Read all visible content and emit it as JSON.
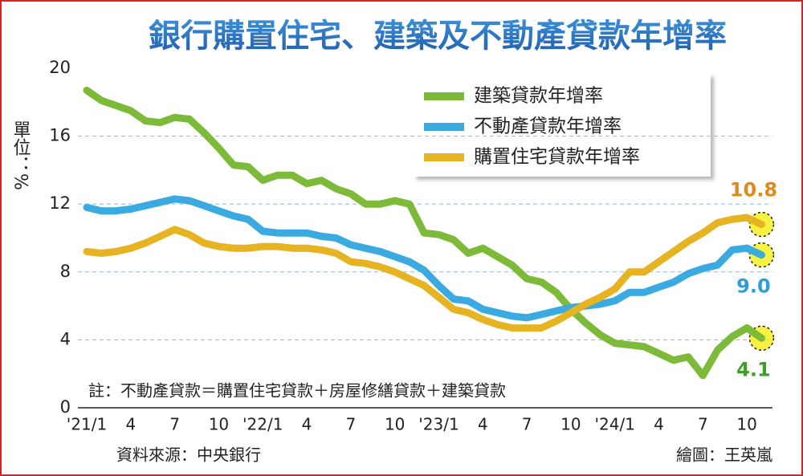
{
  "chart_data": {
    "type": "line",
    "title": "銀行購置住宅、建築及不動產貸款年增率",
    "y_label": "單位：%",
    "note": "註：不動產貸款＝購置住宅貸款＋房屋修繕貸款＋建築貸款",
    "source": "資料來源：中央銀行",
    "credit": "繪圖：王英嵐",
    "categories": [
      "'21/1",
      null,
      null,
      "4",
      null,
      null,
      "7",
      null,
      null,
      "10",
      null,
      null,
      "'22/1",
      null,
      null,
      "4",
      null,
      null,
      "7",
      null,
      null,
      "10",
      null,
      null,
      "'23/1",
      null,
      null,
      "4",
      null,
      null,
      "7",
      null,
      null,
      "10",
      null,
      null,
      "'24/1",
      null,
      null,
      "4",
      null,
      null,
      "7",
      null,
      null,
      "10",
      null
    ],
    "ylim": [
      0,
      20
    ],
    "yticks": [
      0,
      4,
      8,
      12,
      16,
      20
    ],
    "grid": true,
    "series": [
      {
        "name": "建築貸款年增率",
        "color": "#7dba3a",
        "label_color": "#3f9e2a",
        "values": [
          18.7,
          18.1,
          17.8,
          17.5,
          16.9,
          16.8,
          17.1,
          17.0,
          16.2,
          15.3,
          14.3,
          14.2,
          13.4,
          13.7,
          13.7,
          13.2,
          13.4,
          12.9,
          12.6,
          12.0,
          12.0,
          12.2,
          12.0,
          10.3,
          10.2,
          9.9,
          9.1,
          9.4,
          8.9,
          8.4,
          7.6,
          7.4,
          6.8,
          5.8,
          5.0,
          4.3,
          3.8,
          3.7,
          3.6,
          3.2,
          2.8,
          3.0,
          1.9,
          3.4,
          4.2,
          4.7,
          4.1
        ],
        "value_labels": [
          null,
          null,
          null,
          null,
          null,
          null,
          null,
          null,
          null,
          null,
          null,
          null,
          null,
          null,
          null,
          null,
          null,
          null,
          null,
          null,
          null,
          null,
          null,
          null,
          null,
          null,
          null,
          null,
          null,
          null,
          null,
          null,
          null,
          null,
          null,
          null,
          null,
          null,
          null,
          null,
          null,
          null,
          null,
          null,
          null,
          null,
          "4.1"
        ]
      },
      {
        "name": "不動產貸款年增率",
        "color": "#3aaae0",
        "label_color": "#2e9fd8",
        "values": [
          11.8,
          11.6,
          11.6,
          11.7,
          11.9,
          12.1,
          12.3,
          12.2,
          11.9,
          11.6,
          11.3,
          11.1,
          10.4,
          10.3,
          10.3,
          10.3,
          10.1,
          10.0,
          9.6,
          9.4,
          9.2,
          8.9,
          8.6,
          8.1,
          7.2,
          6.4,
          6.3,
          5.8,
          5.6,
          5.4,
          5.3,
          5.5,
          5.7,
          5.9,
          6.0,
          6.1,
          6.3,
          6.8,
          6.8,
          7.1,
          7.4,
          7.9,
          8.2,
          8.4,
          9.3,
          9.4,
          9.0
        ],
        "value_labels": [
          null,
          null,
          null,
          null,
          null,
          null,
          null,
          null,
          null,
          null,
          null,
          null,
          null,
          null,
          null,
          null,
          null,
          null,
          null,
          null,
          null,
          null,
          null,
          null,
          null,
          null,
          null,
          null,
          null,
          null,
          null,
          null,
          null,
          null,
          null,
          null,
          null,
          null,
          null,
          null,
          null,
          null,
          null,
          null,
          null,
          null,
          "9.0"
        ]
      },
      {
        "name": "購置住宅貸款年增率",
        "color": "#e6b422",
        "label_color": "#e08a1e",
        "values": [
          9.2,
          9.1,
          9.2,
          9.4,
          9.7,
          10.1,
          10.5,
          10.2,
          9.7,
          9.5,
          9.4,
          9.4,
          9.5,
          9.5,
          9.4,
          9.4,
          9.3,
          9.1,
          8.6,
          8.5,
          8.3,
          8.0,
          7.6,
          7.2,
          6.5,
          5.8,
          5.6,
          5.2,
          4.9,
          4.7,
          4.7,
          4.7,
          5.1,
          5.6,
          6.1,
          6.5,
          7.0,
          8.0,
          8.0,
          8.6,
          9.2,
          9.8,
          10.3,
          10.9,
          11.1,
          11.2,
          10.8
        ],
        "value_labels": [
          null,
          null,
          null,
          null,
          null,
          null,
          null,
          null,
          null,
          null,
          null,
          null,
          null,
          null,
          null,
          null,
          null,
          null,
          null,
          null,
          null,
          null,
          null,
          null,
          null,
          null,
          null,
          null,
          null,
          null,
          null,
          null,
          null,
          null,
          null,
          null,
          null,
          null,
          null,
          null,
          null,
          null,
          null,
          null,
          null,
          null,
          "10.8"
        ]
      }
    ]
  }
}
